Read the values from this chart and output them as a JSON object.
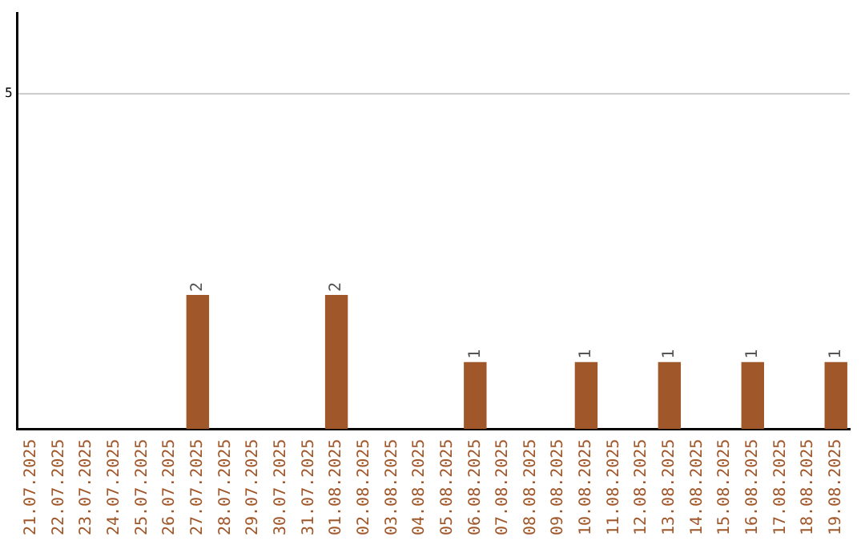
{
  "chart_data": {
    "type": "bar",
    "categories": [
      "21.07.2025",
      "22.07.2025",
      "23.07.2025",
      "24.07.2025",
      "25.07.2025",
      "26.07.2025",
      "27.07.2025",
      "28.07.2025",
      "29.07.2025",
      "30.07.2025",
      "31.07.2025",
      "01.08.2025",
      "02.08.2025",
      "03.08.2025",
      "04.08.2025",
      "05.08.2025",
      "06.08.2025",
      "07.08.2025",
      "08.08.2025",
      "09.08.2025",
      "10.08.2025",
      "11.08.2025",
      "12.08.2025",
      "13.08.2025",
      "14.08.2025",
      "15.08.2025",
      "16.08.2025",
      "17.08.2025",
      "18.08.2025",
      "19.08.2025"
    ],
    "values": [
      null,
      null,
      null,
      null,
      null,
      null,
      2,
      null,
      null,
      null,
      null,
      2,
      null,
      null,
      null,
      null,
      1,
      null,
      null,
      null,
      1,
      null,
      null,
      1,
      null,
      null,
      1,
      null,
      null,
      1
    ],
    "color": "#a0572a",
    "ylim": [
      0,
      6.2
    ],
    "yticks": [
      5
    ],
    "grid": "y",
    "legend": false,
    "data_labels": true
  }
}
